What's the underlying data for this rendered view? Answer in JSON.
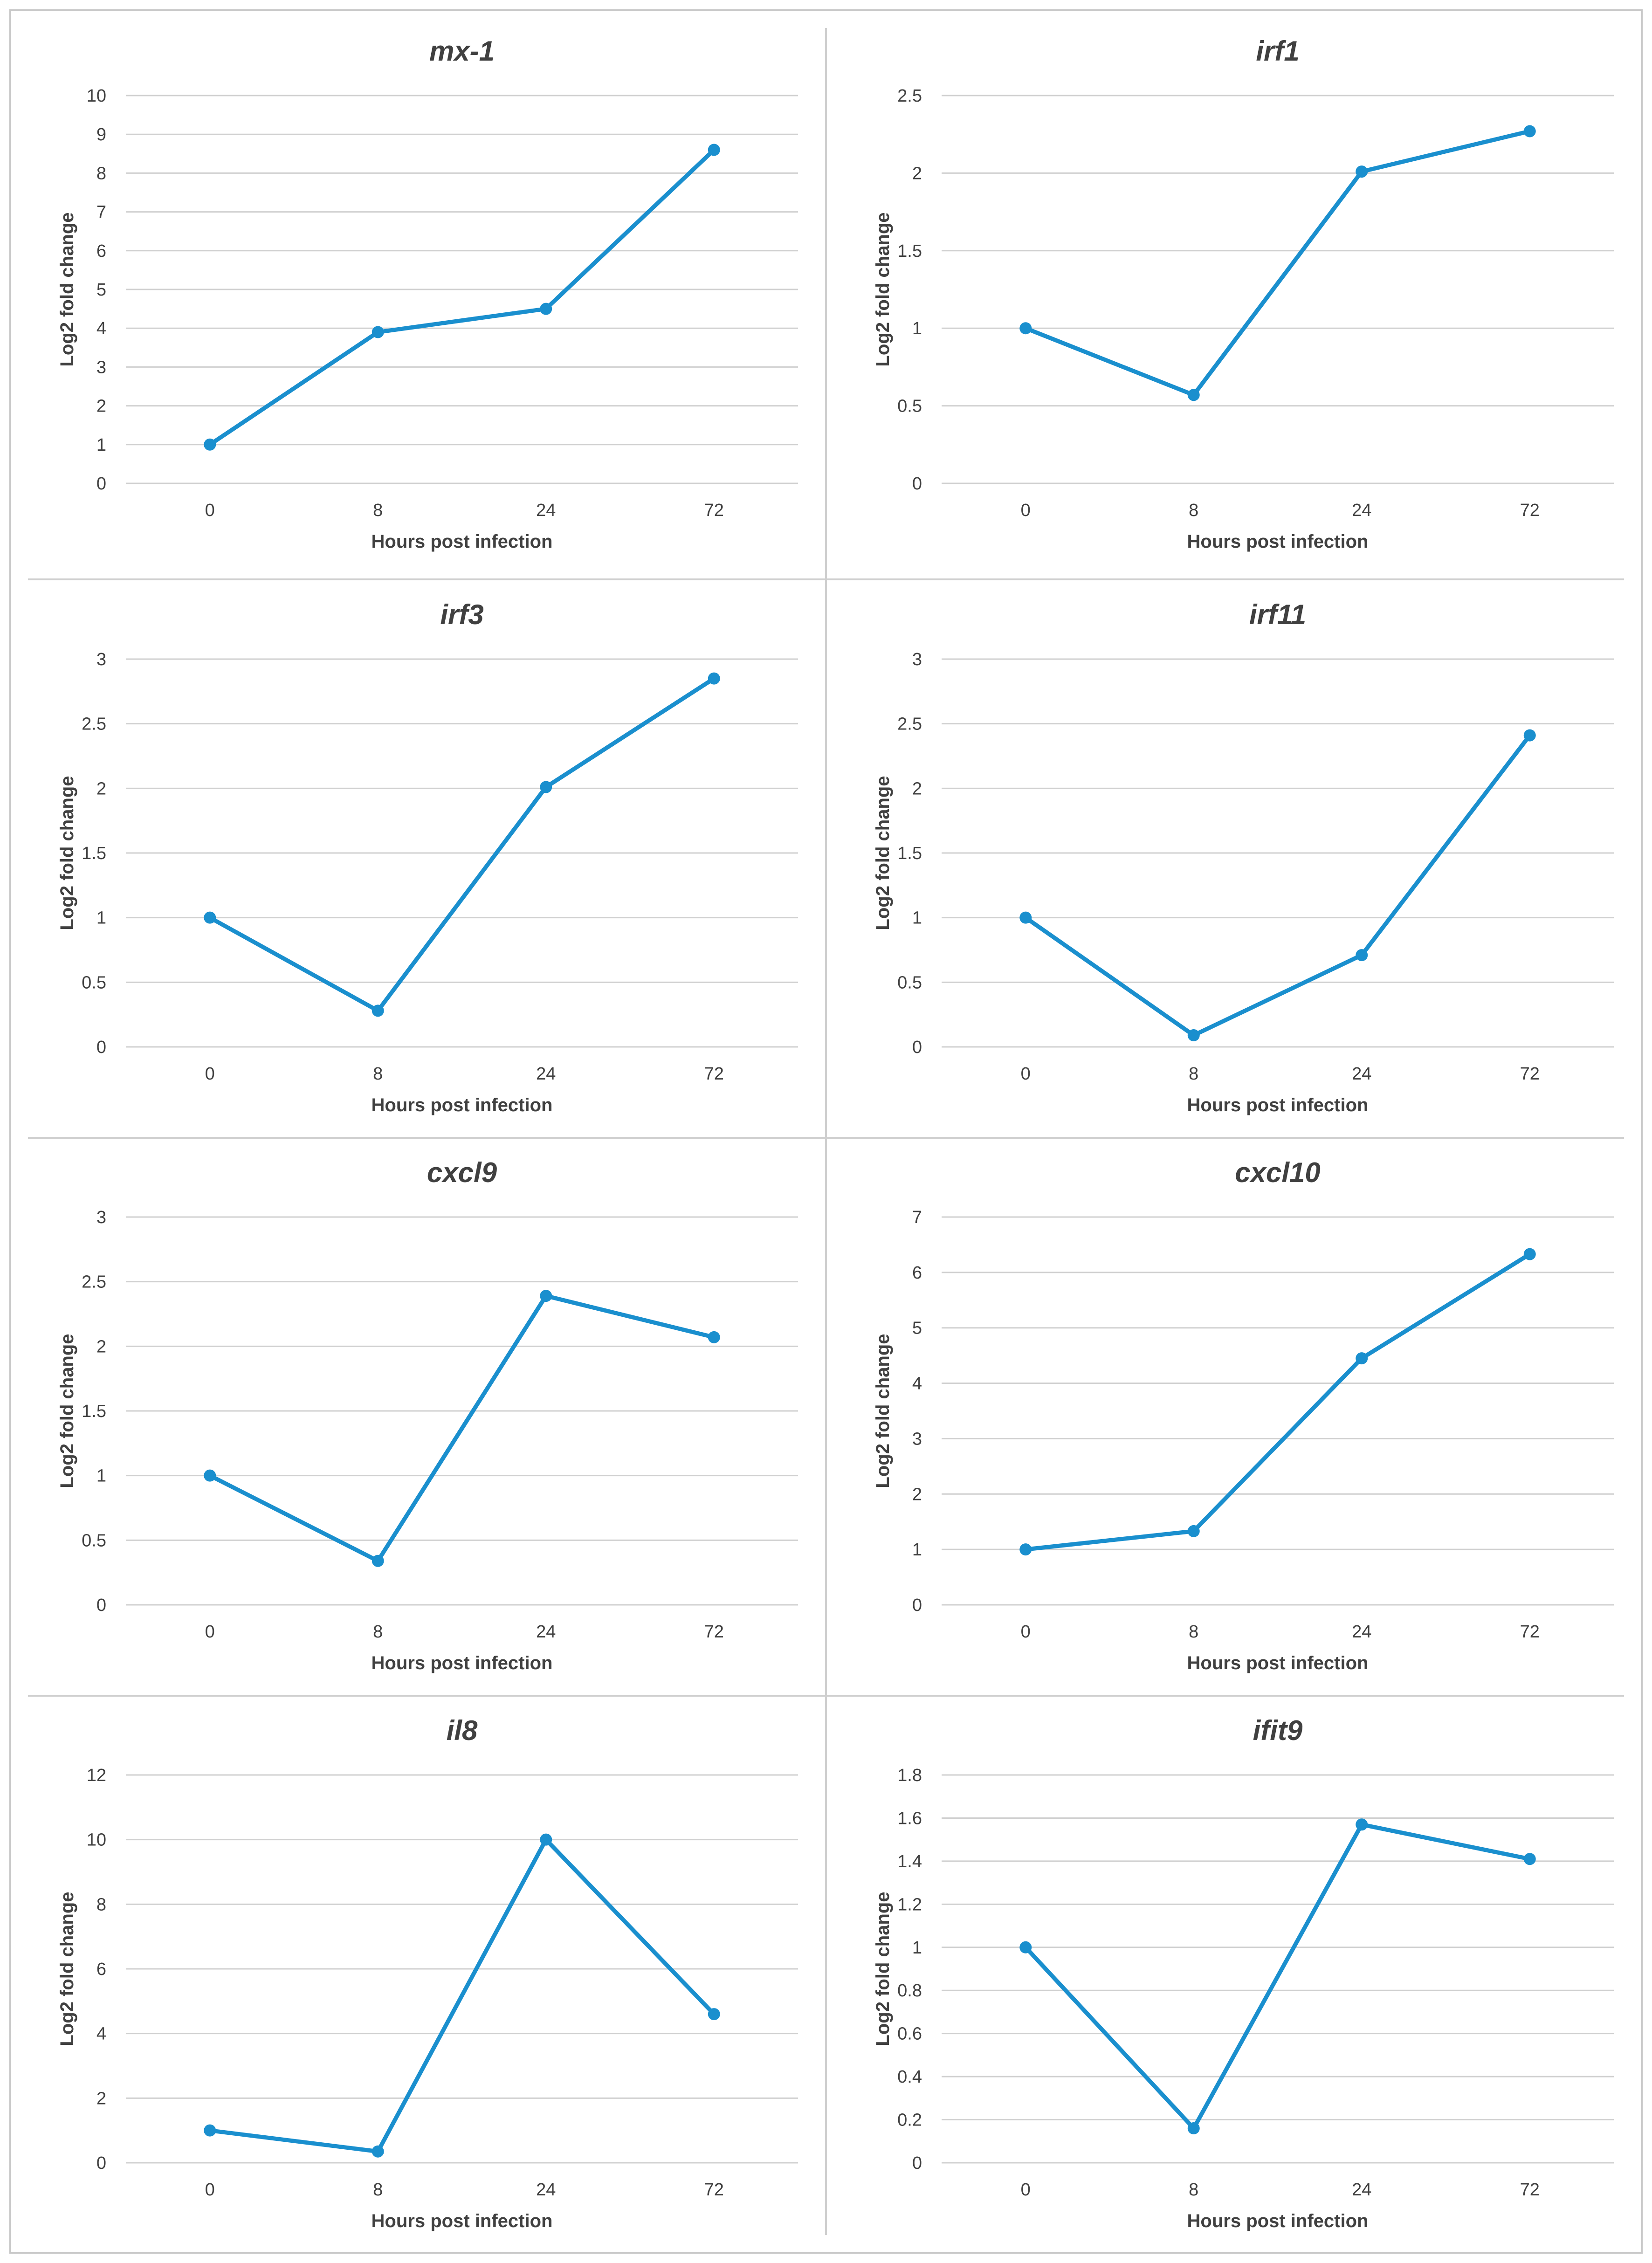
{
  "chart_data": [
    {
      "type": "line",
      "title": "mx-1",
      "categories": [
        "0",
        "8",
        "24",
        "72"
      ],
      "values": [
        1,
        3.9,
        4.5,
        8.6
      ],
      "xlabel": "Hours post infection",
      "ylabel": "Log2 fold change",
      "ylim": [
        0,
        10
      ],
      "yticks": [
        "0",
        "1",
        "2",
        "3",
        "4",
        "5",
        "6",
        "7",
        "8",
        "9",
        "10"
      ],
      "grid": true
    },
    {
      "type": "line",
      "title": "irf1",
      "categories": [
        "0",
        "8",
        "24",
        "72"
      ],
      "values": [
        1,
        0.57,
        2.01,
        2.27
      ],
      "xlabel": "Hours post infection",
      "ylabel": "Log2 fold change",
      "ylim": [
        0,
        2.5
      ],
      "yticks": [
        "0",
        "0.5",
        "1",
        "1.5",
        "2",
        "2.5"
      ],
      "grid": true
    },
    {
      "type": "line",
      "title": "irf3",
      "categories": [
        "0",
        "8",
        "24",
        "72"
      ],
      "values": [
        1,
        0.28,
        2.01,
        2.85
      ],
      "xlabel": "Hours post infection",
      "ylabel": "Log2 fold change",
      "ylim": [
        0,
        3
      ],
      "yticks": [
        "0",
        "0.5",
        "1",
        "1.5",
        "2",
        "2.5",
        "3"
      ],
      "grid": true
    },
    {
      "type": "line",
      "title": "irf11",
      "categories": [
        "0",
        "8",
        "24",
        "72"
      ],
      "values": [
        1,
        0.09,
        0.71,
        2.41
      ],
      "xlabel": "Hours post infection",
      "ylabel": "Log2 fold change",
      "ylim": [
        0,
        3
      ],
      "yticks": [
        "0",
        "0.5",
        "1",
        "1.5",
        "2",
        "2.5",
        "3"
      ],
      "grid": true
    },
    {
      "type": "line",
      "title": "cxcl9",
      "categories": [
        "0",
        "8",
        "24",
        "72"
      ],
      "values": [
        1,
        0.34,
        2.39,
        2.07
      ],
      "xlabel": "Hours post infection",
      "ylabel": "Log2 fold change",
      "ylim": [
        0,
        3
      ],
      "yticks": [
        "0",
        "0.5",
        "1",
        "1.5",
        "2",
        "2.5",
        "3"
      ],
      "grid": true
    },
    {
      "type": "line",
      "title": "cxcl10",
      "categories": [
        "0",
        "8",
        "24",
        "72"
      ],
      "values": [
        1,
        1.33,
        4.45,
        6.33
      ],
      "xlabel": "Hours post infection",
      "ylabel": "Log2 fold change",
      "ylim": [
        0,
        7
      ],
      "yticks": [
        "0",
        "1",
        "2",
        "3",
        "4",
        "5",
        "6",
        "7"
      ],
      "grid": true
    },
    {
      "type": "line",
      "title": "il8",
      "categories": [
        "0",
        "8",
        "24",
        "72"
      ],
      "values": [
        1,
        0.35,
        10,
        4.6
      ],
      "xlabel": "Hours post infection",
      "ylabel": "Log2 fold change",
      "ylim": [
        0,
        12
      ],
      "yticks": [
        "0",
        "2",
        "4",
        "6",
        "8",
        "10",
        "12"
      ],
      "grid": true
    },
    {
      "type": "line",
      "title": "ifit9",
      "categories": [
        "0",
        "8",
        "24",
        "72"
      ],
      "values": [
        1,
        0.16,
        1.57,
        1.41
      ],
      "xlabel": "Hours post infection",
      "ylabel": "Log2 fold change",
      "ylim": [
        0,
        1.8
      ],
      "yticks": [
        "0",
        "0.2",
        "0.4",
        "0.6",
        "0.8",
        "1",
        "1.2",
        "1.4",
        "1.6",
        "1.8"
      ],
      "grid": true
    }
  ],
  "colors": {
    "series": "#1a8fce",
    "grid": "#d0d0d0",
    "text": "#404040"
  }
}
